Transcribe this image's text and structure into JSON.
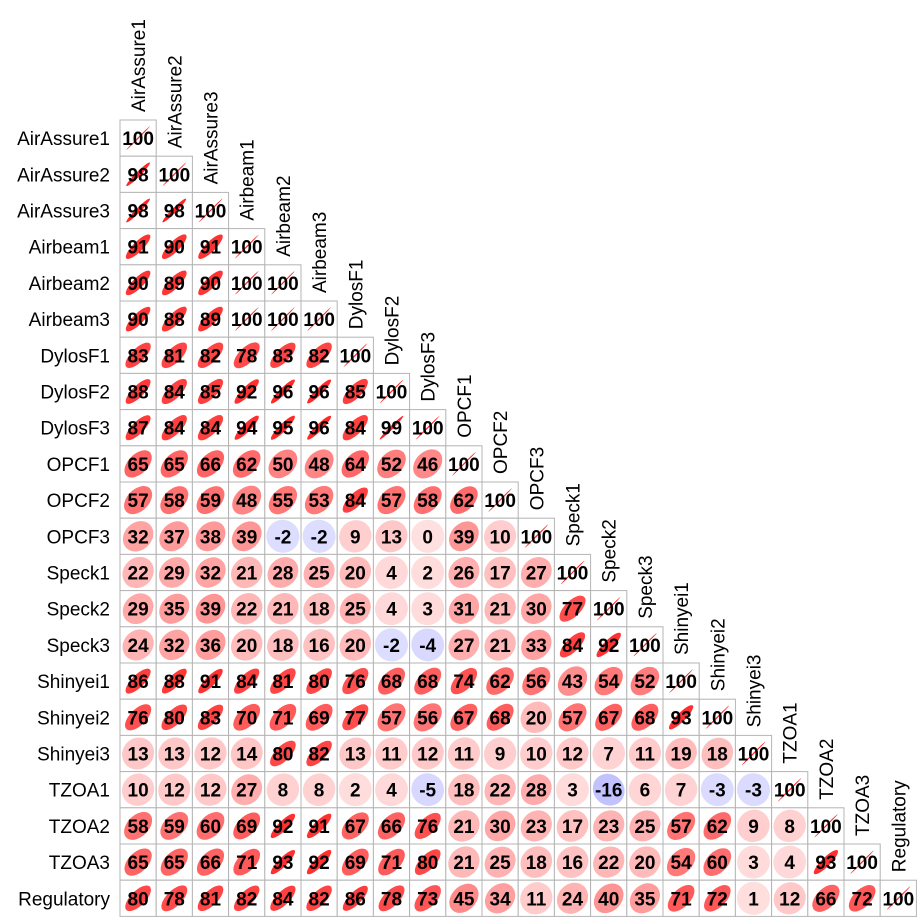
{
  "chart_data": {
    "type": "heatmap",
    "title": "",
    "labels": [
      "AirAssure1",
      "AirAssure2",
      "AirAssure3",
      "Airbeam1",
      "Airbeam2",
      "Airbeam3",
      "DylosF1",
      "DylosF2",
      "DylosF3",
      "OPCF1",
      "OPCF2",
      "OPCF3",
      "Speck1",
      "Speck2",
      "Speck3",
      "Shinyei1",
      "Shinyei2",
      "Shinyei3",
      "TZOA1",
      "TZOA2",
      "TZOA3",
      "Regulatory"
    ],
    "matrix": [
      [
        100
      ],
      [
        98,
        100
      ],
      [
        98,
        98,
        100
      ],
      [
        91,
        90,
        91,
        100
      ],
      [
        90,
        89,
        90,
        100,
        100
      ],
      [
        90,
        88,
        89,
        100,
        100,
        100
      ],
      [
        83,
        81,
        82,
        78,
        83,
        82,
        100
      ],
      [
        88,
        84,
        85,
        92,
        96,
        96,
        85,
        100
      ],
      [
        87,
        84,
        84,
        94,
        95,
        96,
        84,
        99,
        100
      ],
      [
        65,
        65,
        66,
        62,
        50,
        48,
        64,
        52,
        46,
        100
      ],
      [
        57,
        58,
        59,
        48,
        55,
        53,
        84,
        57,
        58,
        62,
        100
      ],
      [
        32,
        37,
        38,
        39,
        -2,
        -2,
        9,
        13,
        0,
        39,
        10,
        100
      ],
      [
        22,
        29,
        32,
        21,
        28,
        25,
        20,
        4,
        2,
        26,
        17,
        27,
        100
      ],
      [
        29,
        35,
        39,
        22,
        21,
        18,
        25,
        4,
        3,
        31,
        21,
        30,
        77,
        100
      ],
      [
        24,
        32,
        36,
        20,
        18,
        16,
        20,
        -2,
        -4,
        27,
        21,
        33,
        84,
        92,
        100
      ],
      [
        86,
        88,
        91,
        84,
        81,
        80,
        76,
        68,
        68,
        74,
        62,
        56,
        43,
        54,
        52,
        100
      ],
      [
        76,
        80,
        83,
        70,
        71,
        69,
        77,
        57,
        56,
        67,
        68,
        20,
        57,
        67,
        68,
        93,
        100
      ],
      [
        13,
        13,
        12,
        14,
        80,
        82,
        13,
        11,
        12,
        11,
        9,
        10,
        12,
        7,
        11,
        19,
        18,
        100
      ],
      [
        10,
        12,
        12,
        27,
        8,
        8,
        2,
        4,
        -5,
        18,
        22,
        28,
        3,
        -16,
        6,
        7,
        -3,
        -3,
        100
      ],
      [
        58,
        59,
        60,
        69,
        92,
        91,
        67,
        66,
        76,
        21,
        30,
        23,
        17,
        23,
        25,
        57,
        62,
        9,
        8,
        100
      ],
      [
        65,
        65,
        66,
        71,
        93,
        92,
        69,
        71,
        80,
        21,
        25,
        18,
        16,
        22,
        20,
        54,
        60,
        3,
        4,
        93,
        100
      ],
      [
        80,
        78,
        81,
        82,
        84,
        82,
        86,
        78,
        73,
        45,
        34,
        11,
        24,
        40,
        35,
        71,
        72,
        1,
        12,
        66,
        72,
        100
      ]
    ],
    "color_positive": "#ff0000",
    "color_negative": "#0000ff",
    "grid": true,
    "layout": "lower-triangle"
  }
}
